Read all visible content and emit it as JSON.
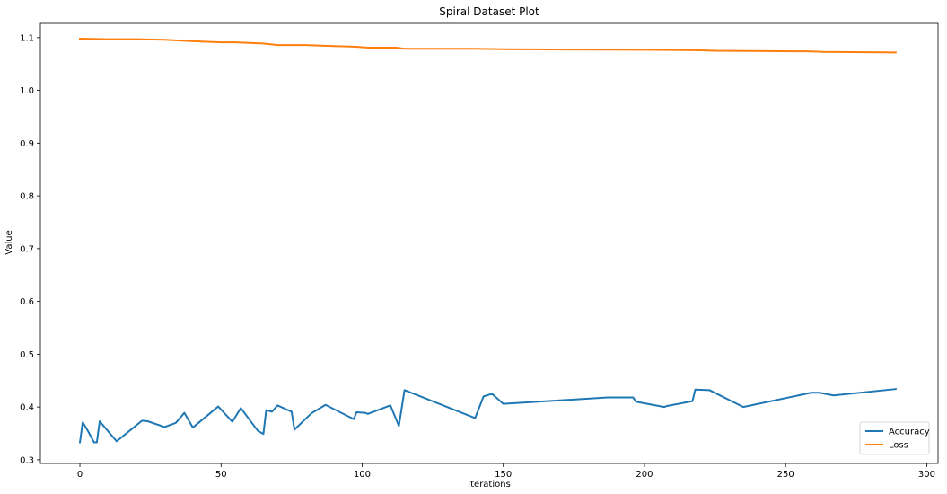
{
  "chart_data": {
    "type": "line",
    "title": "Spiral Dataset Plot",
    "xlabel": "Iterations",
    "ylabel": "Value",
    "xlim": [
      -14,
      304
    ],
    "ylim": [
      0.293,
      1.127
    ],
    "xticks": [
      0,
      50,
      100,
      150,
      200,
      250,
      300
    ],
    "yticks": [
      0.3,
      0.4,
      0.5,
      0.6,
      0.7,
      0.8,
      0.9,
      1.0,
      1.1
    ],
    "ytick_labels": [
      "0.3",
      "0.4",
      "0.5",
      "0.6",
      "0.7",
      "0.8",
      "0.9",
      "1.0",
      "1.1"
    ],
    "grid": false,
    "legend_position": "bottom-right",
    "series": [
      {
        "name": "Accuracy",
        "color": "#1f77b4",
        "points": [
          [
            0,
            0.333
          ],
          [
            1,
            0.371
          ],
          [
            3,
            0.353
          ],
          [
            5,
            0.333
          ],
          [
            6,
            0.333
          ],
          [
            7,
            0.373
          ],
          [
            13,
            0.335
          ],
          [
            22,
            0.374
          ],
          [
            24,
            0.373
          ],
          [
            30,
            0.362
          ],
          [
            34,
            0.37
          ],
          [
            37,
            0.389
          ],
          [
            40,
            0.361
          ],
          [
            49,
            0.401
          ],
          [
            54,
            0.372
          ],
          [
            57,
            0.398
          ],
          [
            63,
            0.355
          ],
          [
            65,
            0.349
          ],
          [
            66,
            0.394
          ],
          [
            68,
            0.391
          ],
          [
            70,
            0.403
          ],
          [
            75,
            0.391
          ],
          [
            76,
            0.357
          ],
          [
            82,
            0.388
          ],
          [
            87,
            0.404
          ],
          [
            97,
            0.377
          ],
          [
            98,
            0.39
          ],
          [
            101,
            0.389
          ],
          [
            102,
            0.387
          ],
          [
            110,
            0.403
          ],
          [
            113,
            0.364
          ],
          [
            115,
            0.432
          ],
          [
            140,
            0.379
          ],
          [
            143,
            0.42
          ],
          [
            146,
            0.425
          ],
          [
            150,
            0.406
          ],
          [
            187,
            0.418
          ],
          [
            196,
            0.418
          ],
          [
            197,
            0.41
          ],
          [
            207,
            0.4
          ],
          [
            208,
            0.402
          ],
          [
            217,
            0.411
          ],
          [
            218,
            0.433
          ],
          [
            223,
            0.432
          ],
          [
            235,
            0.4
          ],
          [
            259,
            0.427
          ],
          [
            262,
            0.427
          ],
          [
            267,
            0.422
          ],
          [
            289,
            0.434
          ]
        ]
      },
      {
        "name": "Loss",
        "color": "#ff7f0e",
        "points": [
          [
            0,
            1.098
          ],
          [
            10,
            1.097
          ],
          [
            20,
            1.097
          ],
          [
            30,
            1.096
          ],
          [
            37,
            1.094
          ],
          [
            45,
            1.092
          ],
          [
            50,
            1.091
          ],
          [
            55,
            1.091
          ],
          [
            60,
            1.09
          ],
          [
            65,
            1.089
          ],
          [
            70,
            1.086
          ],
          [
            80,
            1.086
          ],
          [
            90,
            1.084
          ],
          [
            97,
            1.083
          ],
          [
            100,
            1.082
          ],
          [
            102,
            1.081
          ],
          [
            112,
            1.081
          ],
          [
            115,
            1.079
          ],
          [
            140,
            1.079
          ],
          [
            150,
            1.078
          ],
          [
            200,
            1.077
          ],
          [
            220,
            1.076
          ],
          [
            225,
            1.075
          ],
          [
            258,
            1.074
          ],
          [
            263,
            1.073
          ],
          [
            289,
            1.072
          ]
        ]
      }
    ]
  }
}
